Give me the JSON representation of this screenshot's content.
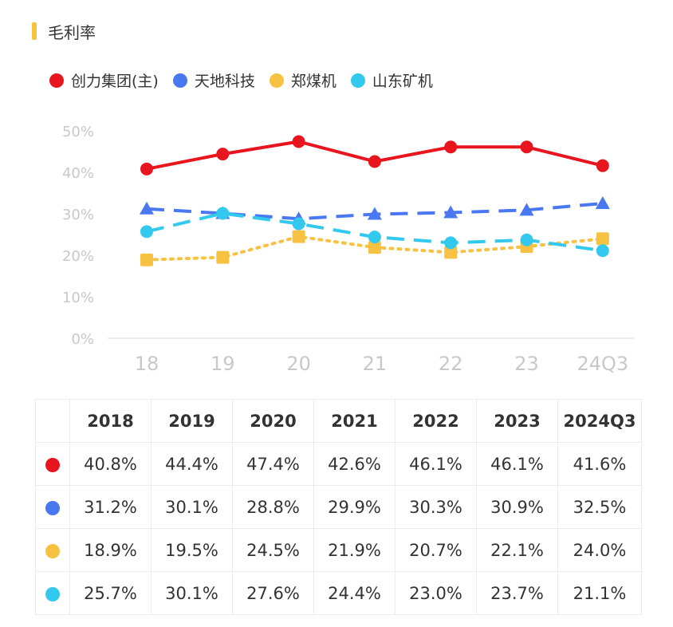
{
  "title": "毛利率",
  "colors": {
    "title_bar": "#f7c242",
    "grid": "#e6e6e6",
    "tick": "#c8c8c8"
  },
  "chart_data": {
    "type": "line",
    "title": "毛利率",
    "categories": [
      "18",
      "19",
      "20",
      "21",
      "22",
      "23",
      "24Q3"
    ],
    "y_ticks": [
      "0%",
      "10%",
      "20%",
      "30%",
      "40%",
      "50%"
    ],
    "ylim": [
      0,
      50
    ],
    "legend_position": "top-left",
    "series": [
      {
        "name": "创力集团(主)",
        "color": "#e8141e",
        "style": "solid",
        "marker": "circle",
        "values": [
          40.8,
          44.4,
          47.4,
          42.6,
          46.1,
          46.1,
          41.6
        ]
      },
      {
        "name": "天地科技",
        "color": "#4a78f0",
        "style": "dash",
        "marker": "triangle",
        "values": [
          31.2,
          30.1,
          28.8,
          29.9,
          30.3,
          30.9,
          32.5
        ]
      },
      {
        "name": "郑煤机",
        "color": "#f7c242",
        "style": "dot",
        "marker": "square",
        "values": [
          18.9,
          19.5,
          24.5,
          21.9,
          20.7,
          22.1,
          24.0
        ]
      },
      {
        "name": "山东矿机",
        "color": "#33c9ef",
        "style": "dash",
        "marker": "circle",
        "values": [
          25.7,
          30.1,
          27.6,
          24.4,
          23.0,
          23.7,
          21.1
        ]
      }
    ]
  },
  "table": {
    "headers": [
      "2018",
      "2019",
      "2020",
      "2021",
      "2022",
      "2023",
      "2024Q3"
    ],
    "rows": [
      {
        "color": "#e8141e",
        "cells": [
          "40.8%",
          "44.4%",
          "47.4%",
          "42.6%",
          "46.1%",
          "46.1%",
          "41.6%"
        ]
      },
      {
        "color": "#4a78f0",
        "cells": [
          "31.2%",
          "30.1%",
          "28.8%",
          "29.9%",
          "30.3%",
          "30.9%",
          "32.5%"
        ]
      },
      {
        "color": "#f7c242",
        "cells": [
          "18.9%",
          "19.5%",
          "24.5%",
          "21.9%",
          "20.7%",
          "22.1%",
          "24.0%"
        ]
      },
      {
        "color": "#33c9ef",
        "cells": [
          "25.7%",
          "30.1%",
          "27.6%",
          "24.4%",
          "23.0%",
          "23.7%",
          "21.1%"
        ]
      }
    ]
  }
}
